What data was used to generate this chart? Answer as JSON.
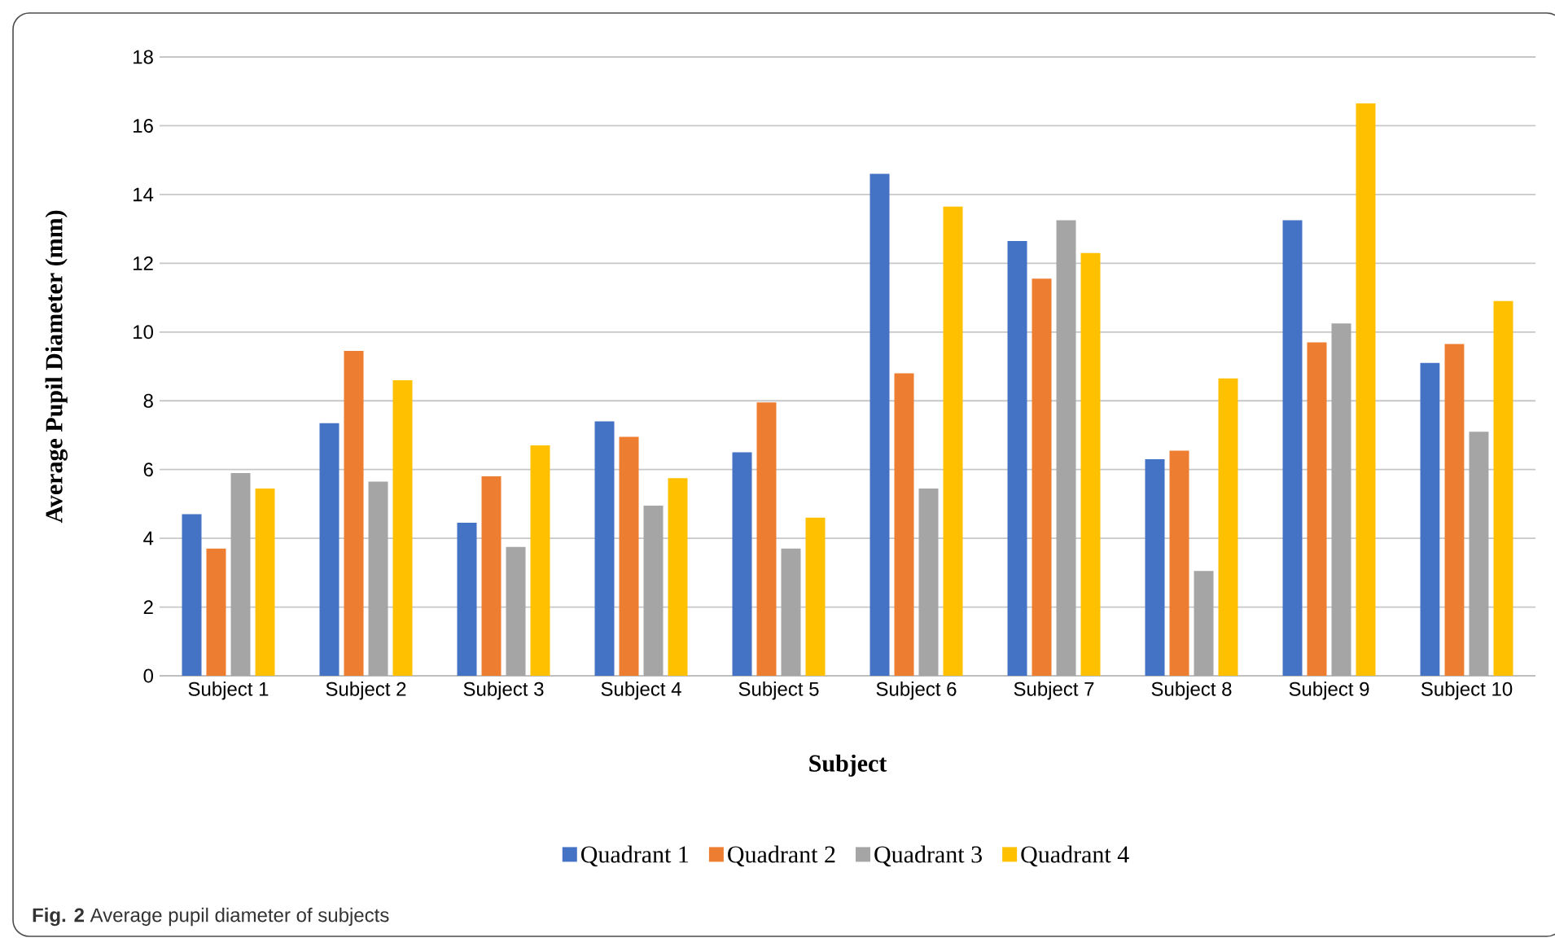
{
  "chart_data": {
    "type": "bar",
    "xlabel": "Subject",
    "ylabel": "Average Pupil Diameter (mm)",
    "categories": [
      "Subject 1",
      "Subject 2",
      "Subject 3",
      "Subject 4",
      "Subject 5",
      "Subject 6",
      "Subject 7",
      "Subject 8",
      "Subject 9",
      "Subject 10"
    ],
    "series": [
      {
        "name": "Quadrant 1",
        "color": "#4472c4",
        "values": [
          4.7,
          7.35,
          4.45,
          7.4,
          6.5,
          14.6,
          12.65,
          6.3,
          13.25,
          9.1
        ]
      },
      {
        "name": "Quadrant 2",
        "color": "#ed7d31",
        "values": [
          3.7,
          9.45,
          5.8,
          6.95,
          7.95,
          8.8,
          11.55,
          6.55,
          9.7,
          9.65
        ]
      },
      {
        "name": "Quadrant 3",
        "color": "#a5a5a5",
        "values": [
          5.9,
          5.65,
          3.75,
          4.95,
          3.7,
          5.45,
          13.25,
          3.05,
          10.25,
          7.1
        ]
      },
      {
        "name": "Quadrant 4",
        "color": "#ffc000",
        "values": [
          5.45,
          8.6,
          6.7,
          5.75,
          4.6,
          13.65,
          12.3,
          8.65,
          16.65,
          10.9
        ]
      }
    ],
    "ylim": [
      0,
      18
    ],
    "yticks": [
      0,
      2,
      4,
      6,
      8,
      10,
      12,
      14,
      16,
      18
    ],
    "grid": "y",
    "legend": "bottom",
    "annotations": [
      "**Fig. 2** Average pupil diameter of subjects"
    ]
  }
}
